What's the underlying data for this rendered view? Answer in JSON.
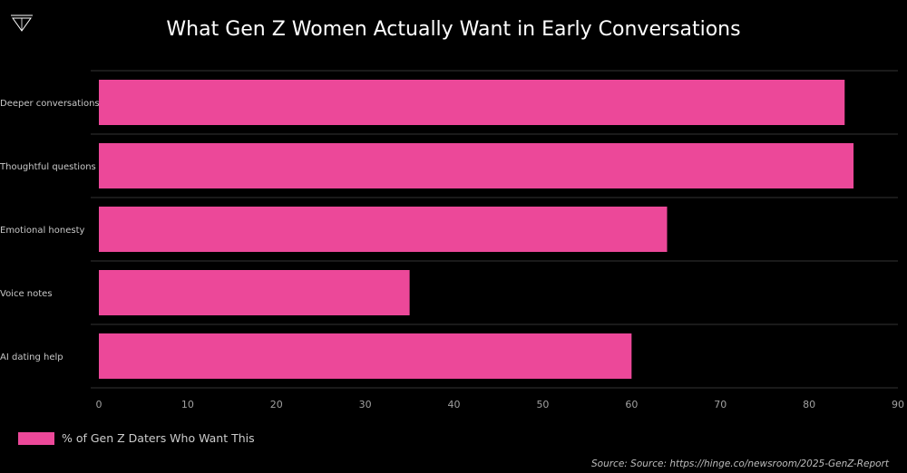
{
  "header": {
    "title": "What Gen Z Women Actually Want in Early Conversations"
  },
  "logo": {
    "icon": "triangle-down-logo-icon"
  },
  "chart_data": {
    "type": "bar",
    "orientation": "horizontal",
    "title": "What Gen Z Women Actually Want in Early Conversations",
    "xlabel": "",
    "ylabel": "",
    "categories": [
      "Deeper conversations",
      "Thoughtful questions",
      "Emotional honesty",
      "Voice notes",
      "AI dating help"
    ],
    "series": [
      {
        "name": "% of Gen Z Daters Who Want This",
        "values": [
          84,
          85,
          64,
          35,
          60
        ]
      }
    ],
    "xlim": [
      0,
      90
    ],
    "x_ticks": [
      "0",
      "10",
      "20",
      "30",
      "40",
      "50",
      "60",
      "70",
      "80",
      "90"
    ],
    "grid": "horizontal separators",
    "legend": "bottom-left",
    "colors": {
      "bar": "#ec4899",
      "background": "#000000",
      "gridline": "#333333",
      "tick_text": "#a0a0a0"
    }
  },
  "legend": {
    "label": "% of Gen Z Daters Who Want This",
    "color": "#ec4899"
  },
  "footer": {
    "source": "Source: Source: https://hinge.co/newsroom/2025-GenZ-Report"
  }
}
